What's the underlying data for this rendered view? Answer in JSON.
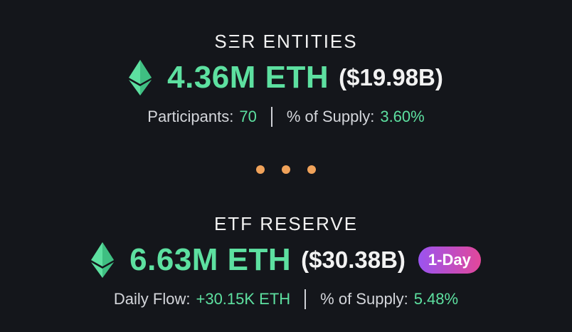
{
  "colors": {
    "background": "#14161b",
    "accent_green": "#5de0a0",
    "text_light": "#f2f2f2",
    "dot_orange": "#f0a25a",
    "badge_gradient_start": "#9a54f0",
    "badge_gradient_end": "#e2479a"
  },
  "ser_entities": {
    "title": "SΞR ENTITIES",
    "icon": "ethereum-icon",
    "amount": "4.36M ETH",
    "usd": "($19.98B)",
    "participants_label": "Participants:",
    "participants_value": "70",
    "supply_label": "% of Supply:",
    "supply_value": "3.60%"
  },
  "separator": {
    "icon": "three-dots-icon"
  },
  "etf_reserve": {
    "title": "ETF RESERVE",
    "icon": "ethereum-icon",
    "amount": "6.63M ETH",
    "usd": "($30.38B)",
    "badge": "1-Day",
    "flow_label": "Daily Flow:",
    "flow_value": "+30.15K ETH",
    "supply_label": "% of Supply:",
    "supply_value": "5.48%"
  }
}
